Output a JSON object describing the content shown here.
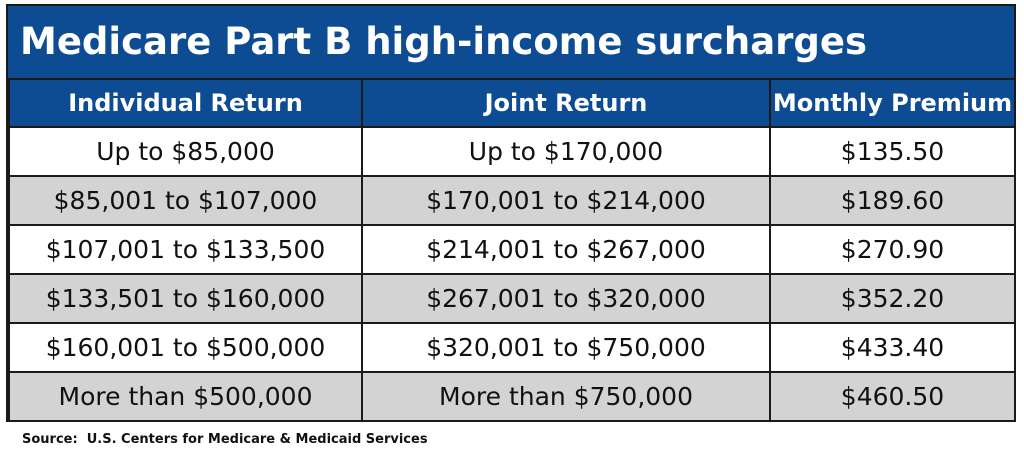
{
  "title": "Medicare Part B high-income surcharges",
  "columns": [
    "Individual Return",
    "Joint Return",
    "Monthly Premium"
  ],
  "rows": [
    [
      "Up to $85,000",
      "Up to $170,000",
      "$135.50"
    ],
    [
      "$85,001 to $107,000",
      "$170,001 to $214,000",
      "$189.60"
    ],
    [
      "$107,001 to $133,500",
      "$214,001 to $267,000",
      "$270.90"
    ],
    [
      "$133,501 to $160,000",
      "$267,001 to $320,000",
      "$352.20"
    ],
    [
      "$160,001 to $500,000",
      "$320,001 to $750,000",
      "$433.40"
    ],
    [
      "More than $500,000",
      "More than $750,000",
      "$460.50"
    ]
  ],
  "source": "Source:  U.S. Centers for Medicare & Medicaid Services",
  "colors": {
    "header_bg": "#0d4b92",
    "alt_row_bg": "#d3d3d3",
    "border": "#1a1a1a"
  }
}
